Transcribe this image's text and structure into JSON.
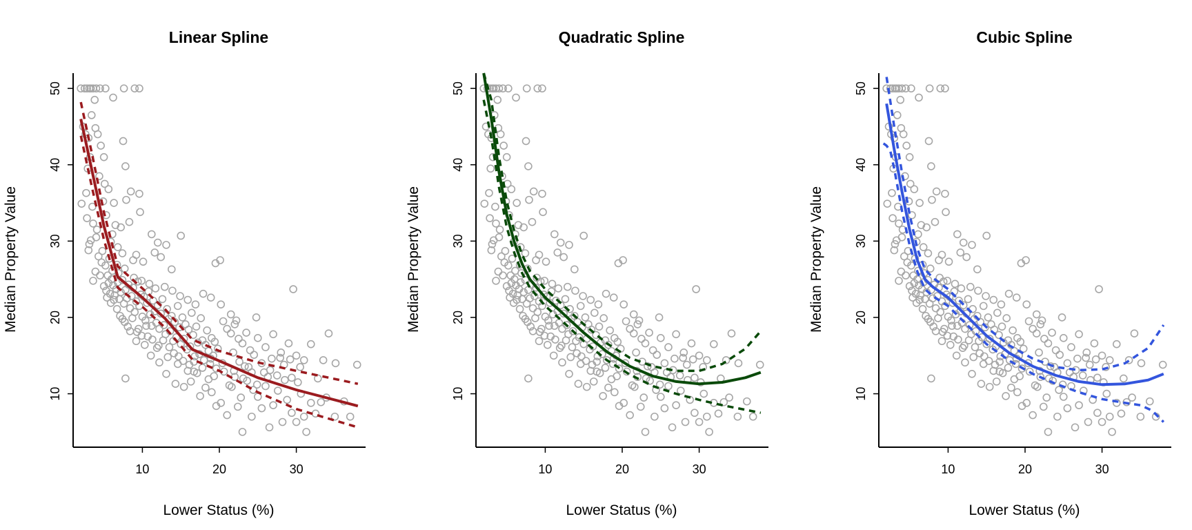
{
  "chart_data": [
    {
      "type": "scatter",
      "title": "Linear Spline",
      "xlabel": "Lower Status (%)",
      "ylabel": "Median Property Value",
      "xlim": [
        1.0,
        39.0
      ],
      "ylim": [
        3.0,
        52.0
      ],
      "xticks": [
        10,
        20,
        30
      ],
      "yticks": [
        10,
        20,
        30,
        40,
        50
      ],
      "colors": {
        "fit": "#9b1b1f",
        "points": "#a6a6a6"
      },
      "fit": {
        "x": [
          2.0,
          3.5,
          5.0,
          6.8,
          10.0,
          13.0,
          16.5,
          20.0,
          25.0,
          30.0,
          38.0
        ],
        "y": [
          46.0,
          39.0,
          32.0,
          25.3,
          22.6,
          19.8,
          15.8,
          14.3,
          12.1,
          10.5,
          8.4
        ]
      },
      "upper": {
        "x": [
          2.0,
          3.5,
          5.0,
          6.8,
          10.0,
          13.0,
          16.5,
          20.0,
          25.0,
          30.0,
          38.0
        ],
        "y": [
          48.2,
          41.2,
          33.8,
          26.7,
          23.8,
          21.0,
          17.1,
          15.6,
          14.1,
          13.0,
          11.3
        ]
      },
      "lower": {
        "x": [
          2.0,
          3.5,
          5.0,
          6.8,
          10.0,
          13.0,
          16.5,
          20.0,
          25.0,
          30.0,
          38.0
        ],
        "y": [
          43.8,
          36.8,
          30.2,
          23.9,
          21.4,
          18.6,
          14.5,
          13.0,
          10.2,
          8.0,
          5.6
        ]
      }
    },
    {
      "type": "scatter",
      "title": "Quadratic Spline",
      "xlabel": "Lower Status (%)",
      "ylabel": "Median Property Value",
      "xlim": [
        1.0,
        39.0
      ],
      "ylim": [
        3.0,
        52.0
      ],
      "xticks": [
        10,
        20,
        30
      ],
      "yticks": [
        10,
        20,
        30,
        40,
        50
      ],
      "colors": {
        "fit": "#0a4a0a",
        "points": "#a6a6a6"
      },
      "fit": {
        "x": [
          2.0,
          3.0,
          4.0,
          5.0,
          6.0,
          7.0,
          8.0,
          10.0,
          12.0,
          15.0,
          18.0,
          21.0,
          24.0,
          27.0,
          30.0,
          33.0,
          36.0,
          38.0
        ],
        "y": [
          52.0,
          46.0,
          39.0,
          33.5,
          29.8,
          27.0,
          25.0,
          22.6,
          20.8,
          18.0,
          15.5,
          13.6,
          12.3,
          11.6,
          11.3,
          11.5,
          12.1,
          12.8
        ]
      },
      "upper": {
        "x": [
          2.0,
          3.0,
          4.0,
          5.0,
          6.0,
          7.0,
          8.0,
          10.0,
          12.0,
          15.0,
          18.0,
          21.0,
          24.0,
          27.0,
          30.0,
          33.0,
          36.0,
          38.0
        ],
        "y": [
          52.0,
          48.5,
          41.0,
          35.2,
          31.2,
          28.2,
          26.1,
          23.7,
          21.9,
          19.1,
          16.6,
          14.7,
          13.6,
          13.0,
          13.0,
          13.9,
          15.9,
          18.2
        ]
      },
      "lower": {
        "x": [
          2.0,
          3.0,
          4.0,
          5.0,
          6.0,
          7.0,
          8.0,
          10.0,
          12.0,
          15.0,
          18.0,
          21.0,
          24.0,
          27.0,
          30.0,
          33.0,
          36.0,
          38.0
        ],
        "y": [
          48.5,
          43.5,
          37.0,
          31.8,
          28.4,
          25.8,
          23.9,
          21.5,
          19.7,
          16.9,
          14.4,
          12.5,
          11.0,
          10.0,
          9.2,
          8.5,
          7.9,
          7.5
        ]
      }
    },
    {
      "type": "scatter",
      "title": "Cubic Spline",
      "xlabel": "Lower Status (%)",
      "ylabel": "Median Property Value",
      "xlim": [
        1.0,
        39.0
      ],
      "ylim": [
        3.0,
        52.0
      ],
      "xticks": [
        10,
        20,
        30
      ],
      "yticks": [
        10,
        20,
        30,
        40,
        50
      ],
      "colors": {
        "fit": "#3355dd",
        "points": "#a6a6a6"
      },
      "fit": {
        "x": [
          2.0,
          3.0,
          4.0,
          5.0,
          6.0,
          7.0,
          8.0,
          10.0,
          12.0,
          15.0,
          18.0,
          21.0,
          24.0,
          27.0,
          30.0,
          33.0,
          36.0,
          38.0
        ],
        "y": [
          48.0,
          42.0,
          36.5,
          31.5,
          27.5,
          25.0,
          24.0,
          22.6,
          20.6,
          17.6,
          15.3,
          13.6,
          12.4,
          11.6,
          11.2,
          11.3,
          11.8,
          12.6
        ]
      },
      "upper": {
        "x": [
          2.0,
          3.0,
          4.0,
          5.0,
          6.0,
          7.0,
          8.0,
          10.0,
          12.0,
          15.0,
          18.0,
          21.0,
          24.0,
          27.0,
          30.0,
          33.0,
          36.0,
          38.0
        ],
        "y": [
          51.5,
          45.0,
          39.0,
          33.5,
          29.0,
          26.3,
          25.2,
          23.7,
          21.7,
          18.7,
          16.3,
          14.6,
          13.5,
          13.1,
          13.2,
          14.0,
          16.0,
          19.0
        ]
      },
      "lower": {
        "x": [
          1.6,
          2.0,
          2.5,
          3.0,
          4.0,
          5.0,
          6.0,
          7.0,
          8.0,
          10.0,
          12.0,
          15.0,
          18.0,
          21.0,
          24.0,
          27.0,
          30.0,
          33.0,
          35.0,
          36.5,
          38.0
        ],
        "y": [
          42.8,
          42.5,
          41.8,
          39.5,
          34.0,
          29.5,
          26.0,
          23.7,
          22.8,
          21.5,
          19.5,
          16.5,
          14.3,
          12.6,
          11.3,
          10.2,
          9.3,
          8.8,
          8.5,
          7.8,
          6.3
        ]
      }
    }
  ],
  "points": [
    [
      2.0,
      50.0
    ],
    [
      2.5,
      50.0
    ],
    [
      2.8,
      50.0
    ],
    [
      3.1,
      50.0
    ],
    [
      3.3,
      50.0
    ],
    [
      3.6,
      50.0
    ],
    [
      4.0,
      50.0
    ],
    [
      4.5,
      50.0
    ],
    [
      5.2,
      50.0
    ],
    [
      7.6,
      50.0
    ],
    [
      9.0,
      50.0
    ],
    [
      9.6,
      50.0
    ],
    [
      6.2,
      48.8
    ],
    [
      3.8,
      48.5
    ],
    [
      2.3,
      45.0
    ],
    [
      2.6,
      44.0
    ],
    [
      3.0,
      43.5
    ],
    [
      3.4,
      46.5
    ],
    [
      3.9,
      44.8
    ],
    [
      4.2,
      44.0
    ],
    [
      5.0,
      41.0
    ],
    [
      4.6,
      42.5
    ],
    [
      7.5,
      43.1
    ],
    [
      7.8,
      39.8
    ],
    [
      3.2,
      41.0
    ],
    [
      2.9,
      39.5
    ],
    [
      4.4,
      38.5
    ],
    [
      5.1,
      37.5
    ],
    [
      5.6,
      36.8
    ],
    [
      8.5,
      36.5
    ],
    [
      9.6,
      36.2
    ],
    [
      2.1,
      34.9
    ],
    [
      2.7,
      36.3
    ],
    [
      3.5,
      34.5
    ],
    [
      4.9,
      35.2
    ],
    [
      6.3,
      35.0
    ],
    [
      7.9,
      35.4
    ],
    [
      2.8,
      33.0
    ],
    [
      3.6,
      32.3
    ],
    [
      4.1,
      31.5
    ],
    [
      5.3,
      33.4
    ],
    [
      6.5,
      32.1
    ],
    [
      7.2,
      31.8
    ],
    [
      8.3,
      32.5
    ],
    [
      9.7,
      33.8
    ],
    [
      11.2,
      30.9
    ],
    [
      12.0,
      29.8
    ],
    [
      13.1,
      29.5
    ],
    [
      15.0,
      30.7
    ],
    [
      3.1,
      29.6
    ],
    [
      4.8,
      28.7
    ],
    [
      5.9,
      29.9
    ],
    [
      6.8,
      29.2
    ],
    [
      7.4,
      28.4
    ],
    [
      8.8,
      27.5
    ],
    [
      9.2,
      28.2
    ],
    [
      10.1,
      27.3
    ],
    [
      11.6,
      28.5
    ],
    [
      12.4,
      27.9
    ],
    [
      13.8,
      26.3
    ],
    [
      19.5,
      27.1
    ],
    [
      20.1,
      27.5
    ],
    [
      3.6,
      24.8
    ],
    [
      5.0,
      24.1
    ],
    [
      5.3,
      23.5
    ],
    [
      5.6,
      24.5
    ],
    [
      5.8,
      23.1
    ],
    [
      6.0,
      25.0
    ],
    [
      6.2,
      24.2
    ],
    [
      6.4,
      22.9
    ],
    [
      6.6,
      23.7
    ],
    [
      6.8,
      24.6
    ],
    [
      7.0,
      22.4
    ],
    [
      7.2,
      23.3
    ],
    [
      7.4,
      24.9
    ],
    [
      7.6,
      21.8
    ],
    [
      7.8,
      23.6
    ],
    [
      8.0,
      22.5
    ],
    [
      8.2,
      24.3
    ],
    [
      8.4,
      21.2
    ],
    [
      8.6,
      22.8
    ],
    [
      8.8,
      23.9
    ],
    [
      9.0,
      20.7
    ],
    [
      9.2,
      22.1
    ],
    [
      9.4,
      24.7
    ],
    [
      9.6,
      21.5
    ],
    [
      9.8,
      23.0
    ],
    [
      10.0,
      20.1
    ],
    [
      10.2,
      22.7
    ],
    [
      10.4,
      19.6
    ],
    [
      10.6,
      21.9
    ],
    [
      10.8,
      23.4
    ],
    [
      11.0,
      20.4
    ],
    [
      11.2,
      18.9
    ],
    [
      11.4,
      22.2
    ],
    [
      11.6,
      20.8
    ],
    [
      11.8,
      19.3
    ],
    [
      12.0,
      21.6
    ],
    [
      12.2,
      18.5
    ],
    [
      12.4,
      20.5
    ],
    [
      12.6,
      22.4
    ],
    [
      12.8,
      19.0
    ],
    [
      13.0,
      17.8
    ],
    [
      13.2,
      21.1
    ],
    [
      13.4,
      19.8
    ],
    [
      13.6,
      18.2
    ],
    [
      13.8,
      20.2
    ],
    [
      14.0,
      16.9
    ],
    [
      14.2,
      19.4
    ],
    [
      14.4,
      17.4
    ],
    [
      14.6,
      21.5
    ],
    [
      14.8,
      18.7
    ],
    [
      15.0,
      16.5
    ],
    [
      15.2,
      20.0
    ],
    [
      15.4,
      17.2
    ],
    [
      15.6,
      19.1
    ],
    [
      15.8,
      15.8
    ],
    [
      16.0,
      18.4
    ],
    [
      16.2,
      16.2
    ],
    [
      16.4,
      20.6
    ],
    [
      16.6,
      17.7
    ],
    [
      16.8,
      14.9
    ],
    [
      17.0,
      18.8
    ],
    [
      17.2,
      16.7
    ],
    [
      17.4,
      15.2
    ],
    [
      17.6,
      19.9
    ],
    [
      17.8,
      17.0
    ],
    [
      18.0,
      14.4
    ],
    [
      18.2,
      16.4
    ],
    [
      18.4,
      18.3
    ],
    [
      18.6,
      15.6
    ],
    [
      18.8,
      13.9
    ],
    [
      19.0,
      17.3
    ],
    [
      19.2,
      15.0
    ],
    [
      19.4,
      16.8
    ],
    [
      19.6,
      13.3
    ],
    [
      19.8,
      15.9
    ],
    [
      5.5,
      25.5
    ],
    [
      6.1,
      26.1
    ],
    [
      6.9,
      25.8
    ],
    [
      7.7,
      26.4
    ],
    [
      8.9,
      25.2
    ],
    [
      9.9,
      24.8
    ],
    [
      10.9,
      24.4
    ],
    [
      11.7,
      23.8
    ],
    [
      12.9,
      24.0
    ],
    [
      13.9,
      23.5
    ],
    [
      14.9,
      22.8
    ],
    [
      15.9,
      22.3
    ],
    [
      16.9,
      21.7
    ],
    [
      17.9,
      23.1
    ],
    [
      18.9,
      22.6
    ],
    [
      20.5,
      19.5
    ],
    [
      21.0,
      18.5
    ],
    [
      21.5,
      17.9
    ],
    [
      22.0,
      19.1
    ],
    [
      22.5,
      17.2
    ],
    [
      23.0,
      16.6
    ],
    [
      23.5,
      18.0
    ],
    [
      24.0,
      15.7
    ],
    [
      25.0,
      17.3
    ],
    [
      26.0,
      16.1
    ],
    [
      27.0,
      17.8
    ],
    [
      28.0,
      15.4
    ],
    [
      29.0,
      16.6
    ],
    [
      30.0,
      15.0
    ],
    [
      31.0,
      14.4
    ],
    [
      21.8,
      15.4
    ],
    [
      22.6,
      14.2
    ],
    [
      23.3,
      13.6
    ],
    [
      24.2,
      12.8
    ],
    [
      25.5,
      14.0
    ],
    [
      26.6,
      13.1
    ],
    [
      27.5,
      12.4
    ],
    [
      28.4,
      13.8
    ],
    [
      29.4,
      12.1
    ],
    [
      30.5,
      13.5
    ],
    [
      24.8,
      20.0
    ],
    [
      29.6,
      23.7
    ],
    [
      33.5,
      14.4
    ],
    [
      37.9,
      13.8
    ],
    [
      34.2,
      17.9
    ],
    [
      31.9,
      16.5
    ],
    [
      20.2,
      21.7
    ],
    [
      21.5,
      20.4
    ],
    [
      22.2,
      19.6
    ],
    [
      19.0,
      10.2
    ],
    [
      19.6,
      8.4
    ],
    [
      20.2,
      8.8
    ],
    [
      21.0,
      7.2
    ],
    [
      21.6,
      10.9
    ],
    [
      22.4,
      8.3
    ],
    [
      23.0,
      5.0
    ],
    [
      23.6,
      11.7
    ],
    [
      24.2,
      7.0
    ],
    [
      25.0,
      9.6
    ],
    [
      25.5,
      8.1
    ],
    [
      26.0,
      11.0
    ],
    [
      26.5,
      5.6
    ],
    [
      27.0,
      8.5
    ],
    [
      27.6,
      10.4
    ],
    [
      28.2,
      6.3
    ],
    [
      28.8,
      9.2
    ],
    [
      29.4,
      7.5
    ],
    [
      30.0,
      6.3
    ],
    [
      30.6,
      10.0
    ],
    [
      31.3,
      5.0
    ],
    [
      31.9,
      8.8
    ],
    [
      32.5,
      7.4
    ],
    [
      33.2,
      8.9
    ],
    [
      35.0,
      7.0
    ],
    [
      37.0,
      7.0
    ],
    [
      30.2,
      11.5
    ],
    [
      28.5,
      11.8
    ],
    [
      26.3,
      12.2
    ],
    [
      24.9,
      11.2
    ],
    [
      23.8,
      13.5
    ],
    [
      22.0,
      12.2
    ],
    [
      20.6,
      12.9
    ],
    [
      19.3,
      12.3
    ],
    [
      18.2,
      10.8
    ],
    [
      17.5,
      9.7
    ],
    [
      16.3,
      11.6
    ],
    [
      15.4,
      10.9
    ],
    [
      14.3,
      11.3
    ],
    [
      13.1,
      12.6
    ],
    [
      12.2,
      14.1
    ],
    [
      11.1,
      15.0
    ],
    [
      10.3,
      16.4
    ],
    [
      9.2,
      16.9
    ],
    [
      8.4,
      18.2
    ],
    [
      7.4,
      19.8
    ],
    [
      7.8,
      12.0
    ],
    [
      9.5,
      18.5
    ],
    [
      10.7,
      17.5
    ],
    [
      11.9,
      16.0
    ],
    [
      13.3,
      14.8
    ],
    [
      14.6,
      13.9
    ],
    [
      15.9,
      13.0
    ],
    [
      17.1,
      12.7
    ],
    [
      18.6,
      11.9
    ],
    [
      26.8,
      14.6
    ],
    [
      27.9,
      14.7
    ],
    [
      24.5,
      15.1
    ],
    [
      25.8,
      12.8
    ],
    [
      29.2,
      14.5
    ],
    [
      32.8,
      12.0
    ],
    [
      35.1,
      14.0
    ],
    [
      33.9,
      9.5
    ],
    [
      36.2,
      9.0
    ],
    [
      31.0,
      7.0
    ],
    [
      22.8,
      9.5
    ],
    [
      21.3,
      11.1
    ],
    [
      16.7,
      14.2
    ],
    [
      17.8,
      13.4
    ],
    [
      18.9,
      14.6
    ],
    [
      20.4,
      14.0
    ],
    [
      21.9,
      13.0
    ],
    [
      23.1,
      12.0
    ],
    [
      24.4,
      10.5
    ],
    [
      4.0,
      30.5
    ],
    [
      4.3,
      28.0
    ],
    [
      4.7,
      27.2
    ],
    [
      5.2,
      26.8
    ],
    [
      5.7,
      27.7
    ],
    [
      6.1,
      30.9
    ],
    [
      6.7,
      26.9
    ],
    [
      3.3,
      30.1
    ],
    [
      3.0,
      28.8
    ],
    [
      3.9,
      26.0
    ],
    [
      4.5,
      25.5
    ],
    [
      5.4,
      22.6
    ],
    [
      5.9,
      21.9
    ],
    [
      6.3,
      22.3
    ],
    [
      6.7,
      21.1
    ],
    [
      7.1,
      20.2
    ],
    [
      7.7,
      19.4
    ],
    [
      8.1,
      18.8
    ],
    [
      8.7,
      19.9
    ],
    [
      9.3,
      18.1
    ],
    [
      9.9,
      17.6
    ],
    [
      10.5,
      18.9
    ],
    [
      11.3,
      17.1
    ],
    [
      12.1,
      16.3
    ],
    [
      12.7,
      17.0
    ],
    [
      13.5,
      16.1
    ],
    [
      14.1,
      15.3
    ],
    [
      14.7,
      14.9
    ],
    [
      15.3,
      14.3
    ],
    [
      16.1,
      13.8
    ],
    [
      16.7,
      12.9
    ]
  ]
}
